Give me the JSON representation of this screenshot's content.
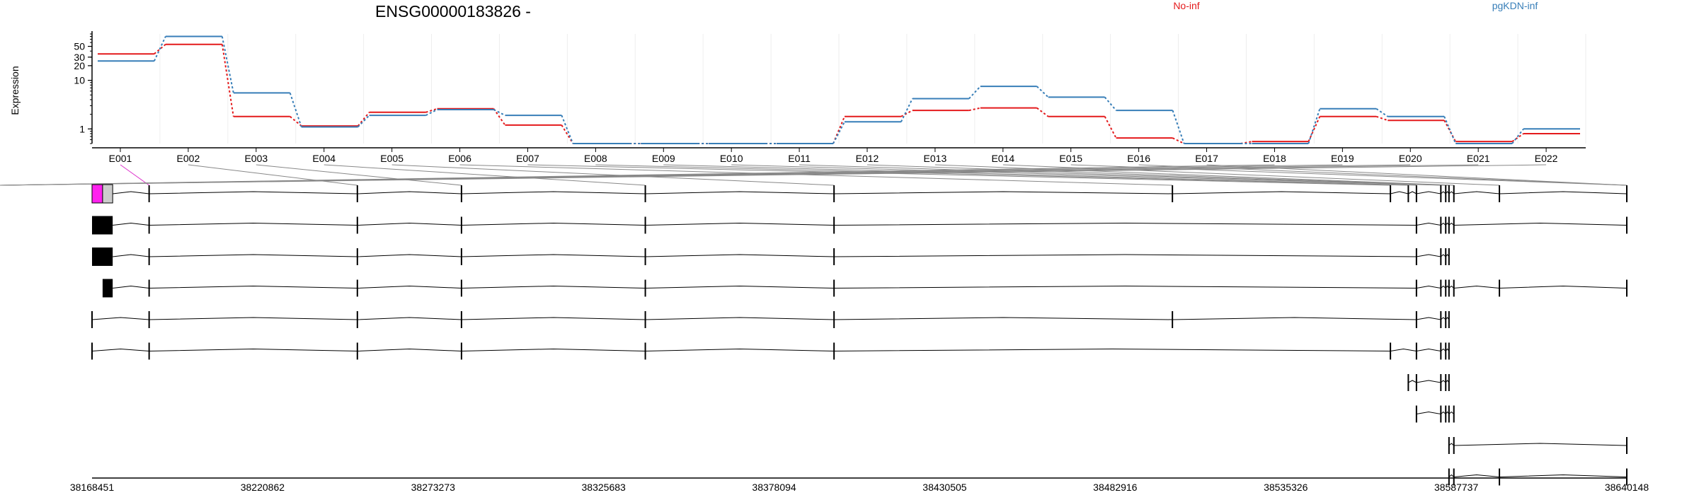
{
  "chart_data": {
    "type": "line",
    "title": "ENSG00000183826 -",
    "ylabel": "Expression",
    "yscale": "log",
    "yticks": [
      "1",
      "10",
      "20",
      "30",
      "50"
    ],
    "ytick_values": [
      1,
      10,
      20,
      30,
      50
    ],
    "grid": "vertical",
    "legend_placement": "top",
    "categories": [
      "E001",
      "E002",
      "E003",
      "E004",
      "E005",
      "E006",
      "E007",
      "E008",
      "E009",
      "E010",
      "E011",
      "E012",
      "E013",
      "E014",
      "E015",
      "E016",
      "E017",
      "E018",
      "E019",
      "E020",
      "E021",
      "E022"
    ],
    "series": [
      {
        "name": "No-inf",
        "color": "#e41a1c",
        "values": [
          35,
          55,
          1.8,
          1.15,
          2.2,
          2.6,
          1.2,
          0.5,
          0.5,
          0.5,
          0.5,
          1.8,
          2.4,
          2.7,
          1.8,
          0.65,
          0.5,
          0.55,
          1.8,
          1.5,
          0.55,
          0.8
        ]
      },
      {
        "name": "pgKDN-inf",
        "color": "#377eb8",
        "values": [
          25,
          80,
          5.5,
          1.1,
          1.9,
          2.5,
          1.9,
          0.5,
          0.5,
          0.5,
          0.5,
          1.4,
          4.2,
          7.5,
          4.5,
          2.4,
          0.5,
          0.5,
          2.6,
          1.8,
          0.5,
          1.0
        ]
      }
    ],
    "genome_axis": {
      "tick_labels": [
        "38168451",
        "38220862",
        "38273273",
        "38325683",
        "38378094",
        "38430505",
        "38482916",
        "38535326",
        "38587737",
        "38640148"
      ],
      "start": 38168451,
      "end": 38640148
    },
    "exon_positions": [
      38168451,
      38186000,
      38250000,
      38282000,
      38338500,
      38396500,
      38500500,
      38567500,
      38573000,
      38575500,
      38583000,
      38584500,
      38585500,
      38587000,
      38601000,
      38640148
    ],
    "exon_link_targets": [
      1,
      2,
      3,
      4,
      5,
      6,
      7,
      8,
      9,
      10,
      11,
      12,
      13,
      14,
      15,
      15,
      15,
      16,
      16,
      17,
      18,
      19
    ],
    "first_exon": {
      "start": 38168451,
      "end": 38174800,
      "split": 38171700,
      "colors": {
        "left": "#ff22ee",
        "right": "#cccccc"
      }
    },
    "transcripts": [
      {
        "exons": [
          0,
          1,
          2,
          3,
          4,
          5,
          6,
          7,
          8,
          9,
          10,
          11,
          12,
          13,
          14,
          15
        ],
        "start_block": "magenta"
      },
      {
        "exons": [
          0,
          1,
          2,
          3,
          4,
          5,
          9,
          10,
          11,
          12,
          13,
          15
        ],
        "start_block": "black"
      },
      {
        "exons": [
          0,
          1,
          2,
          3,
          4,
          5,
          9,
          10,
          11,
          12
        ],
        "start_block": "black"
      },
      {
        "exons": [
          0,
          1,
          2,
          3,
          4,
          5,
          9,
          10,
          11,
          12,
          13,
          14,
          15
        ],
        "start_block": "small"
      },
      {
        "exons": [
          0,
          1,
          2,
          3,
          4,
          5,
          6,
          9,
          10,
          11,
          12
        ],
        "start_block": "none"
      },
      {
        "exons": [
          0,
          1,
          2,
          3,
          4,
          5,
          7,
          9,
          10,
          11,
          12
        ],
        "start_block": "none"
      },
      {
        "exons": [
          8,
          9,
          10,
          11,
          12
        ],
        "start_block": "none"
      },
      {
        "exons": [
          9,
          10,
          11,
          12,
          13
        ],
        "start_block": "none"
      },
      {
        "exons": [
          12,
          13,
          15
        ],
        "start_block": "none"
      },
      {
        "exons": [
          12,
          13,
          14,
          15
        ],
        "start_block": "none"
      }
    ]
  }
}
